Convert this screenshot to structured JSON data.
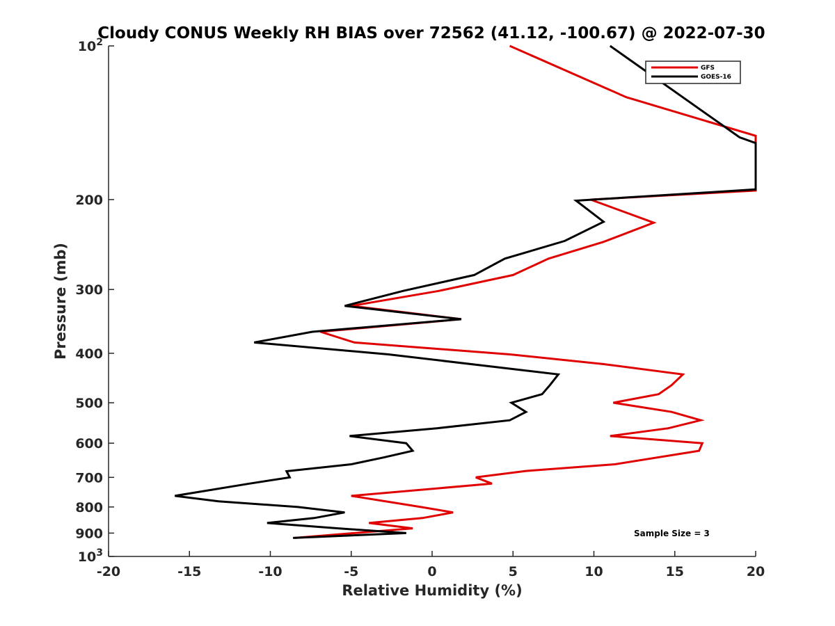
{
  "chart_data": {
    "type": "line",
    "title": "Cloudy CONUS Weekly RH BIAS over 72562 (41.12, -100.67) @ 2022-07-30",
    "xlabel": "Relative Humidity (%)",
    "ylabel": "Pressure (mb)",
    "xlim": [
      -20,
      20
    ],
    "ylim": [
      100,
      1000
    ],
    "y_scale": "log",
    "y_reversed": true,
    "x_ticks": [
      "-20",
      "-15",
      "-10",
      "-5",
      "0",
      "5",
      "10",
      "15",
      "20"
    ],
    "y_ticks": [
      {
        "value": 100,
        "base": "10",
        "exp": "2"
      },
      {
        "value": 200,
        "label": "200"
      },
      {
        "value": 300,
        "label": "300"
      },
      {
        "value": 400,
        "label": "400"
      },
      {
        "value": 500,
        "label": "500"
      },
      {
        "value": 600,
        "label": "600"
      },
      {
        "value": 700,
        "label": "700"
      },
      {
        "value": 800,
        "label": "800"
      },
      {
        "value": 900,
        "label": "900"
      },
      {
        "value": 1000,
        "base": "10",
        "exp": "3"
      }
    ],
    "grid": false,
    "legend_position": "top-right",
    "annotation": "Sample Size = 3",
    "series": [
      {
        "name": "GFS",
        "color": "#e00000",
        "points": [
          [
            4.8,
            100
          ],
          [
            12.0,
            126
          ],
          [
            20.0,
            150
          ],
          [
            20.0,
            192
          ],
          [
            9.8,
            200
          ],
          [
            13.7,
            222
          ],
          [
            10.6,
            242
          ],
          [
            7.2,
            261
          ],
          [
            5.0,
            281
          ],
          [
            0.4,
            302
          ],
          [
            -5.0,
            323
          ],
          [
            1.8,
            343
          ],
          [
            -6.9,
            363
          ],
          [
            -4.8,
            381
          ],
          [
            4.8,
            402
          ],
          [
            10.6,
            420
          ],
          [
            15.5,
            440
          ],
          [
            14.8,
            462
          ],
          [
            14.0,
            481
          ],
          [
            11.2,
            500
          ],
          [
            14.8,
            521
          ],
          [
            16.6,
            541
          ],
          [
            14.6,
            561
          ],
          [
            11.0,
            581
          ],
          [
            16.7,
            600
          ],
          [
            16.5,
            621
          ],
          [
            11.3,
            660
          ],
          [
            5.8,
            680
          ],
          [
            2.7,
            700
          ],
          [
            3.7,
            720
          ],
          [
            -5.0,
            761
          ],
          [
            -0.7,
            800
          ],
          [
            1.3,
            820
          ],
          [
            -0.6,
            841
          ],
          [
            -3.9,
            860
          ],
          [
            -1.2,
            881
          ],
          [
            -8.5,
            920
          ]
        ]
      },
      {
        "name": "GOES-16",
        "color": "#000000",
        "points": [
          [
            11.0,
            100
          ],
          [
            19.0,
            151
          ],
          [
            20.0,
            155
          ],
          [
            20.0,
            191
          ],
          [
            8.9,
            201
          ],
          [
            10.6,
            221
          ],
          [
            8.2,
            241
          ],
          [
            4.5,
            261
          ],
          [
            2.6,
            281
          ],
          [
            -1.8,
            302
          ],
          [
            -5.4,
            323
          ],
          [
            1.8,
            343
          ],
          [
            -7.4,
            363
          ],
          [
            -11.0,
            381
          ],
          [
            -2.7,
            402
          ],
          [
            7.8,
            440
          ],
          [
            7.3,
            461
          ],
          [
            6.8,
            481
          ],
          [
            4.9,
            500
          ],
          [
            5.8,
            521
          ],
          [
            4.8,
            541
          ],
          [
            0.3,
            561
          ],
          [
            -5.1,
            581
          ],
          [
            -1.6,
            600
          ],
          [
            -1.2,
            621
          ],
          [
            -3.0,
            640
          ],
          [
            -5.0,
            660
          ],
          [
            -9.0,
            681
          ],
          [
            -8.8,
            700
          ],
          [
            -11.3,
            720
          ],
          [
            -15.9,
            761
          ],
          [
            -13.2,
            780
          ],
          [
            -8.3,
            800
          ],
          [
            -5.4,
            820
          ],
          [
            -7.3,
            841
          ],
          [
            -10.2,
            860
          ],
          [
            -5.8,
            881
          ],
          [
            -1.6,
            900
          ],
          [
            -8.6,
            920
          ]
        ]
      }
    ]
  }
}
